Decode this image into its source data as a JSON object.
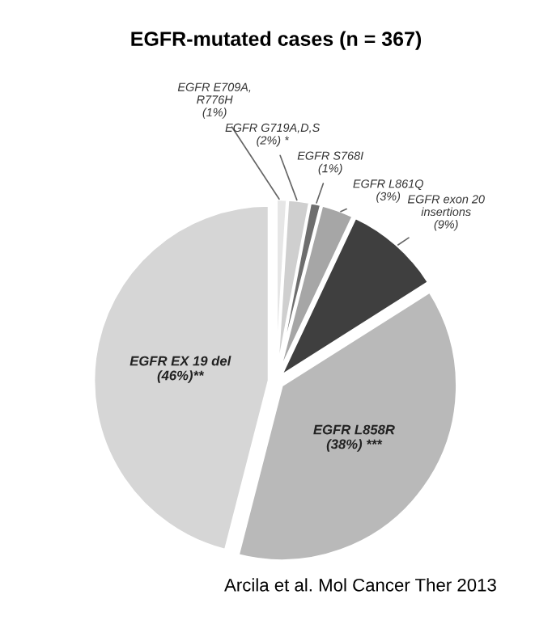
{
  "chart_data": {
    "type": "pie",
    "title": "EGFR-mutated cases (n = 367)",
    "categories": [
      "EGFR E709A,\nR776H",
      "EGFR G719A,D,S",
      "EGFR S768I",
      "EGFR L861Q",
      "EGFR exon 20\ninsertions",
      "EGFR L858R",
      "EGFR EX 19 del"
    ],
    "values": [
      1,
      2,
      1,
      3,
      9,
      38,
      46
    ],
    "value_labels": [
      "(1%)",
      "(2%) *",
      "(1%)",
      "(3%)",
      "(9%)",
      "(38%) ***",
      "(46%)**"
    ],
    "colors": [
      "#e6e6e6",
      "#cfcfcf",
      "#6e6e6e",
      "#a6a6a6",
      "#3f3f3f",
      "#b9b9b9",
      "#d6d6d6"
    ],
    "annotations": [
      "Arcila et al. Mol Cancer Ther 2013"
    ]
  }
}
